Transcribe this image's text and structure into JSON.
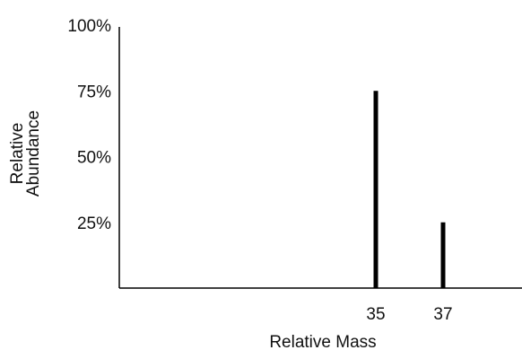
{
  "chart_data": {
    "type": "bar",
    "title": "",
    "xlabel": "Relative Mass",
    "ylabel_lines": [
      "Relative",
      "Abundance"
    ],
    "x": [
      35,
      37
    ],
    "values": [
      75,
      25
    ],
    "x_tick_labels": [
      "35",
      "37"
    ],
    "y_ticks": [
      25,
      50,
      75,
      100
    ],
    "y_tick_labels": [
      "25%",
      "50%",
      "75%",
      "100%"
    ],
    "ylim": [
      0,
      100
    ],
    "grid": false,
    "bar_color": "#000000",
    "axis_color": "#000000"
  }
}
